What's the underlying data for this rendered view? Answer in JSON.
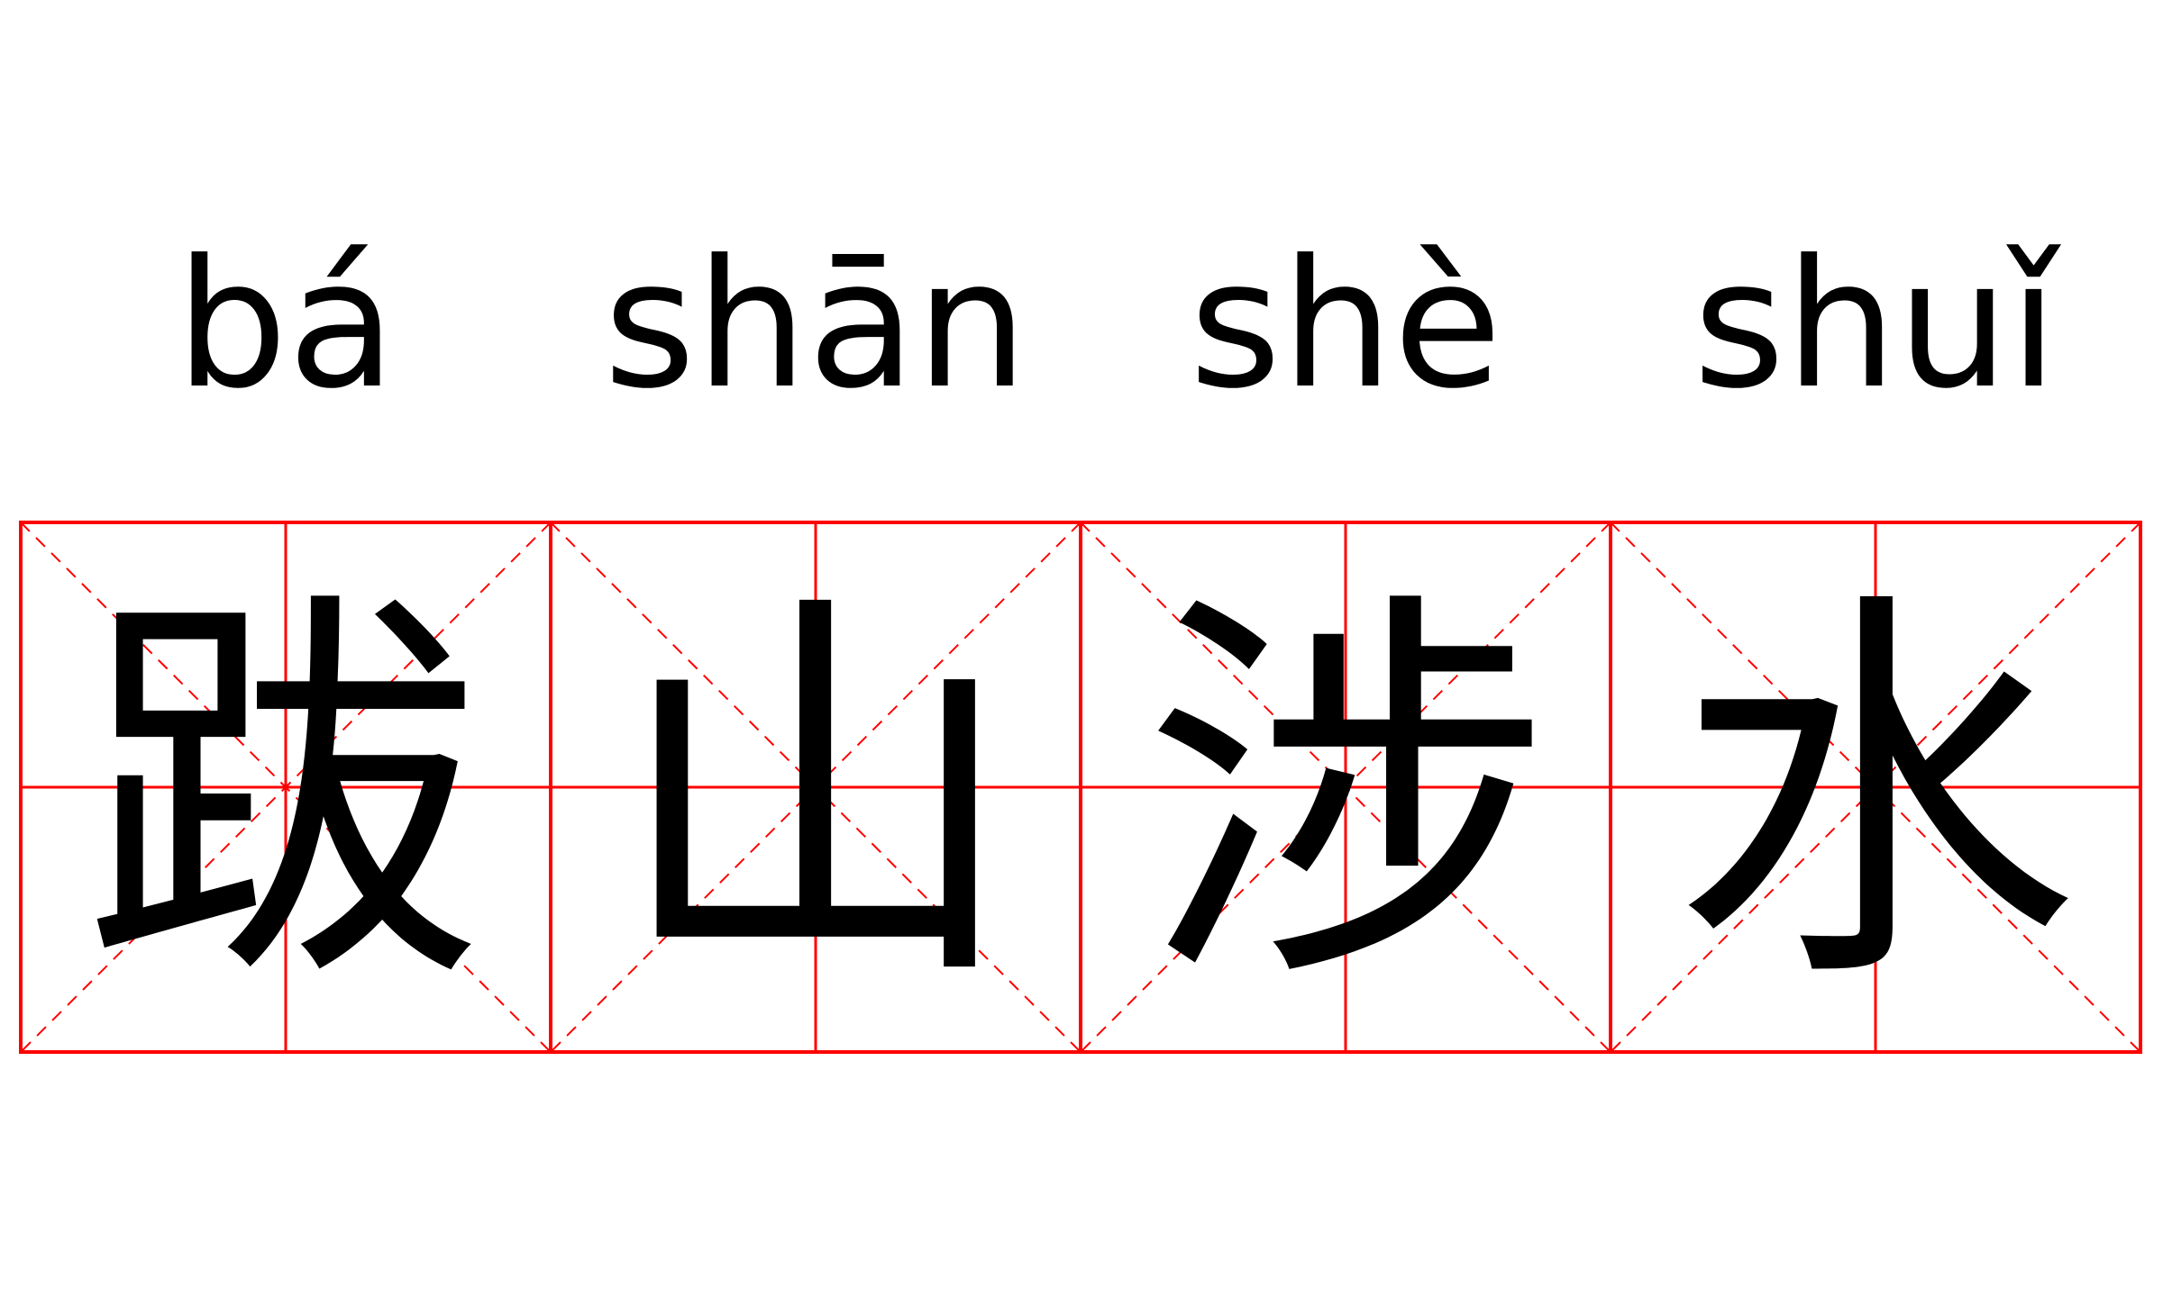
{
  "pinyin": [
    "bá",
    "shān",
    "shè",
    "shuǐ"
  ],
  "characters": [
    "跋",
    "山",
    "涉",
    "水"
  ],
  "grid": {
    "color": "#ff0000",
    "style": "tianzige with dashed diagonals"
  },
  "text_color": "#000000"
}
